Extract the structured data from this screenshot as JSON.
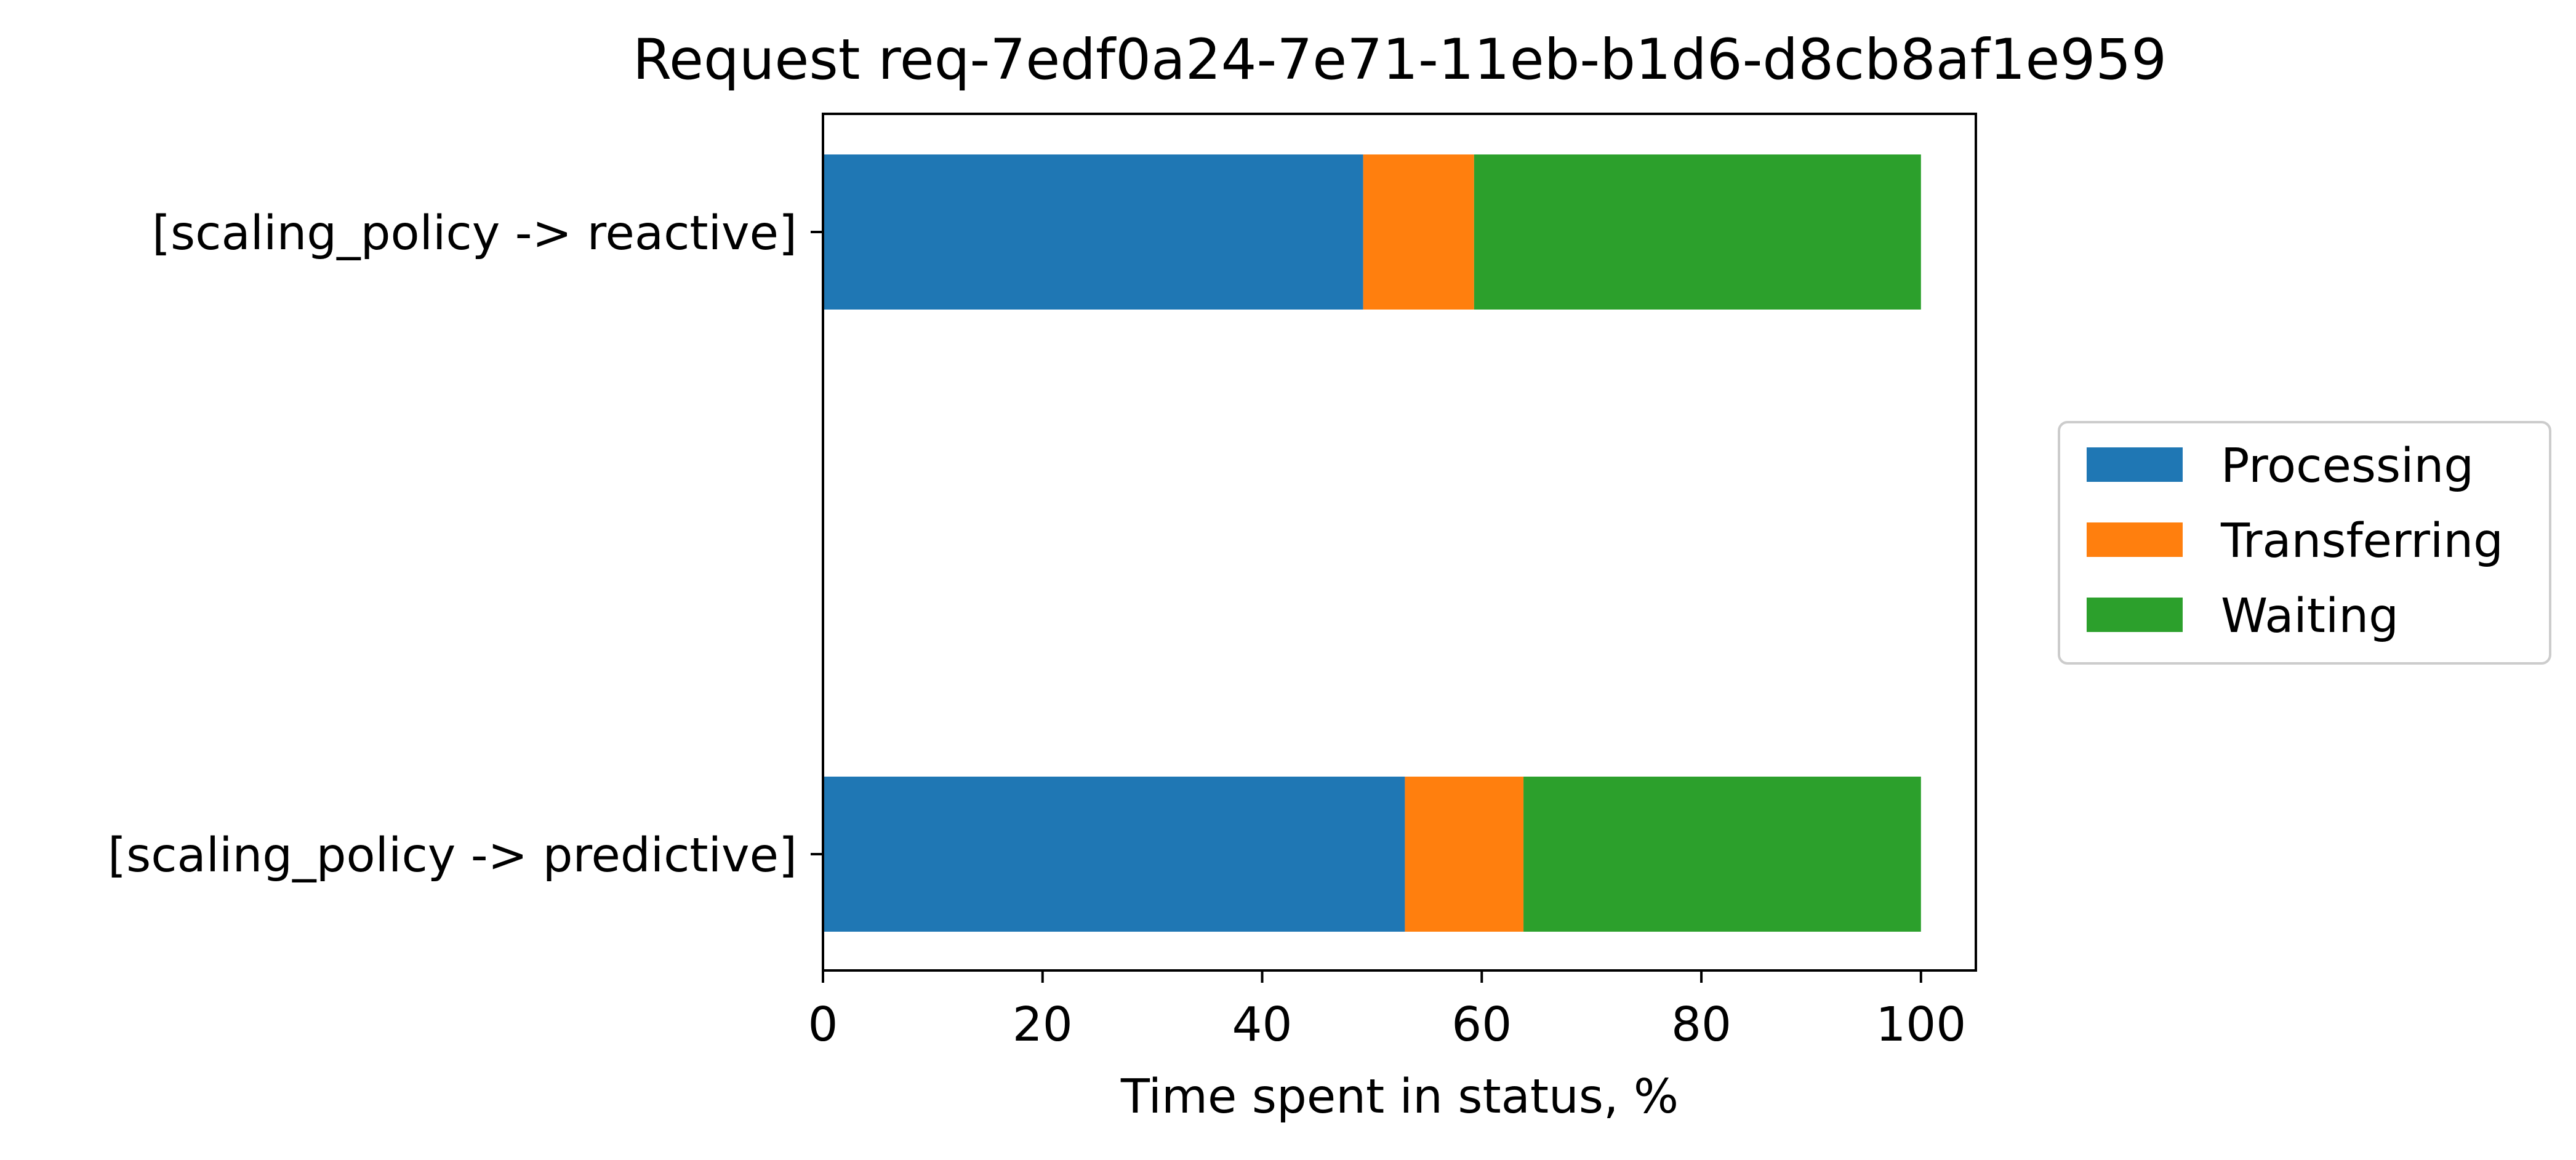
{
  "chart_data": {
    "type": "bar",
    "orientation": "horizontal",
    "stacked": true,
    "title": "Request req-7edf0a24-7e71-11eb-b1d6-d8cb8af1e959",
    "xlabel": "Time spent in status, %",
    "ylabel": "",
    "xlim": [
      0,
      105
    ],
    "xticks": [
      0,
      20,
      40,
      60,
      80,
      100
    ],
    "grid": false,
    "legend_position": "right",
    "categories": [
      "[scaling_policy -> reactive]",
      "[scaling_policy -> predictive]"
    ],
    "series": [
      {
        "name": "Processing",
        "color": "#1f77b4",
        "values": [
          49.2,
          53.0
        ]
      },
      {
        "name": "Transferring",
        "color": "#ff7f0e",
        "values": [
          10.1,
          10.8
        ]
      },
      {
        "name": "Waiting",
        "color": "#2ca02c",
        "values": [
          40.7,
          36.2
        ]
      }
    ]
  }
}
